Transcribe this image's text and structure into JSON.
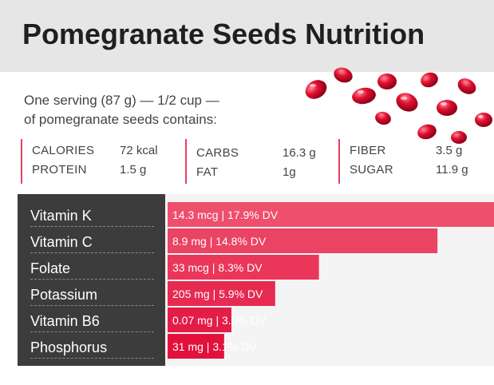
{
  "title": "Pomegranate Seeds Nutrition",
  "serving": {
    "line1": "One serving (87 g) — 1/2 cup —",
    "line2": "of pomegranate seeds contains:"
  },
  "macros": [
    {
      "label1": "CALORIES",
      "value1": "72 kcal",
      "label2": "PROTEIN",
      "value2": "1.5 g"
    },
    {
      "label1": "CARBS",
      "value1": "16.3 g",
      "label2": "FAT",
      "value2": "1g"
    },
    {
      "label1": "FIBER",
      "value1": "3.5 g",
      "label2": "SUGAR",
      "value2": "11.9 g"
    }
  ],
  "colors": {
    "accent": "#e8415f",
    "bar_light": "#ee4f6d",
    "bar_dark": "#e1113c",
    "label_panel": "#3c3c3c"
  },
  "chart_data": {
    "type": "bar",
    "orientation": "horizontal",
    "categories": [
      "Vitamin K",
      "Vitamin C",
      "Folate",
      "Potassium",
      "Vitamin B6",
      "Phosphorus"
    ],
    "values": [
      17.9,
      14.8,
      8.3,
      5.9,
      3.5,
      3.1
    ],
    "value_labels": [
      "14.3 mcg | 17.9% DV",
      "8.9 mg | 14.8% DV",
      "33 mcg | 8.3% DV",
      "205 mg | 5.9% DV",
      "0.07 mg | 3.5% DV",
      "31 mg | 3.1% DV"
    ],
    "unit": "% DV",
    "grid": false
  }
}
